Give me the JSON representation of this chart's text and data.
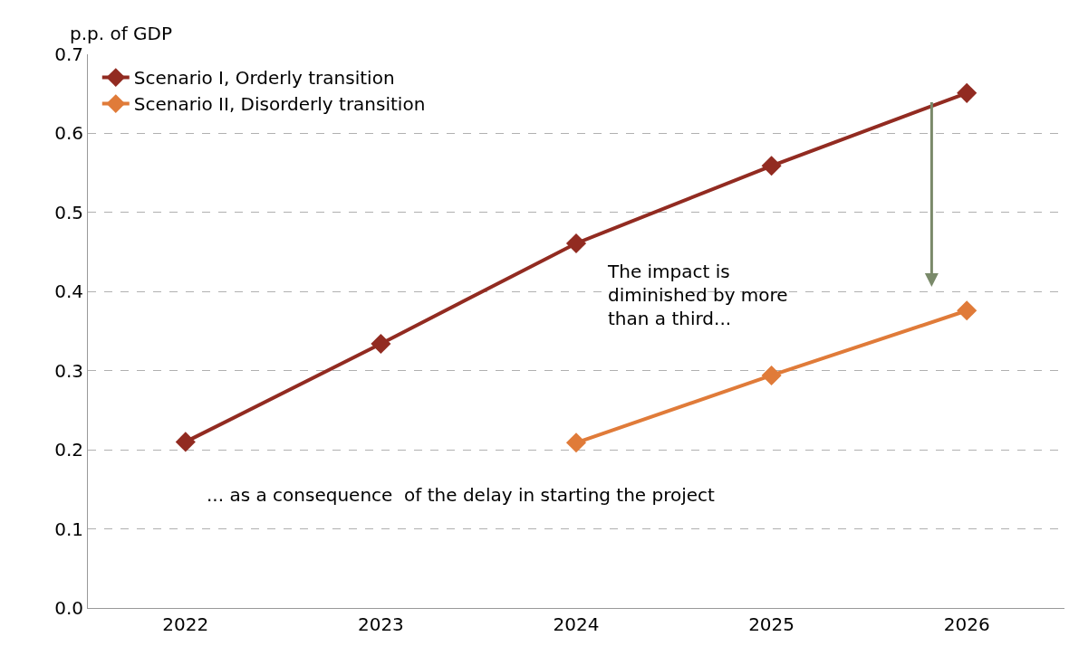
{
  "chart_data": {
    "type": "line",
    "ylabel": "p.p. of GDP",
    "categories": [
      "2022",
      "2023",
      "2024",
      "2025",
      "2026"
    ],
    "series": [
      {
        "name": "Scenario I, Orderly transition",
        "color": "#922b21",
        "values": [
          0.21,
          0.334,
          0.461,
          0.559,
          0.651
        ]
      },
      {
        "name": "Scenario II, Disorderly transition",
        "color": "#e07b39",
        "values": [
          null,
          null,
          0.209,
          0.294,
          0.376
        ]
      }
    ],
    "ylim": [
      0,
      0.7
    ],
    "yticks": [
      {
        "value": 0,
        "label": "0.0"
      },
      0.1,
      0.2,
      0.3,
      0.4,
      0.5,
      0.6,
      0.7
    ],
    "grid": "y",
    "legend": "top left",
    "marker": "diamond",
    "line_style": "solid",
    "annotations": [
      "The impact is\ndiminished by more\nthan a third...",
      "... as a consequence  of the delay in starting the project"
    ]
  }
}
